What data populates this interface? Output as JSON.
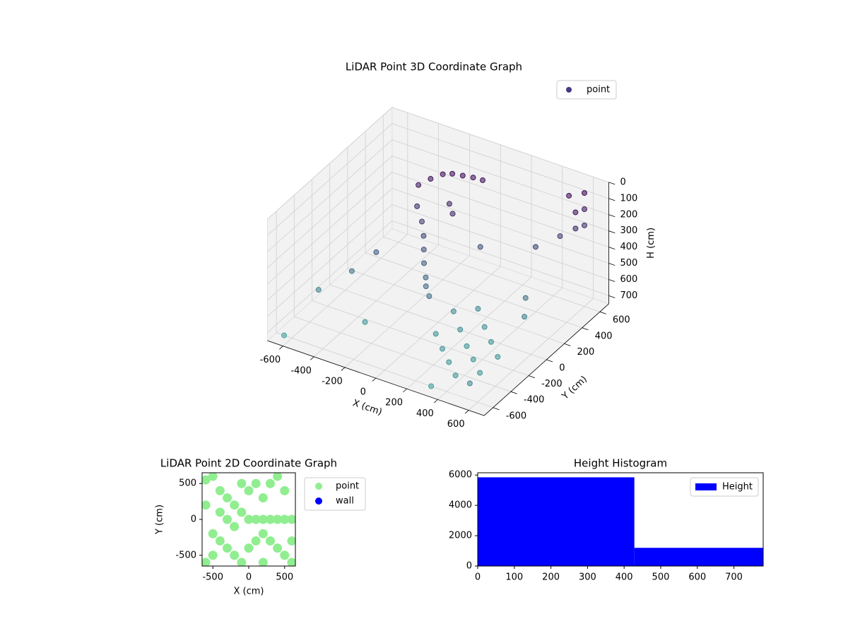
{
  "chart_data": [
    {
      "type": "scatter3d",
      "title": "LiDAR Point 3D Coordinate Graph",
      "xlabel": "X (cm)",
      "ylabel": "Y (cm)",
      "zlabel": "H (cm)",
      "xlim": [
        -700,
        700
      ],
      "ylim": [
        -700,
        700
      ],
      "zlim": [
        0,
        750
      ],
      "z_inverted": true,
      "xticks": [
        -600,
        -400,
        -200,
        0,
        200,
        400,
        600
      ],
      "yticks": [
        -600,
        -400,
        -200,
        0,
        200,
        400,
        600
      ],
      "zticks": [
        0,
        100,
        200,
        300,
        400,
        500,
        600,
        700
      ],
      "colormap": [
        "#440154",
        "#48a4a0"
      ],
      "legend": "upper right",
      "series": [
        {
          "name": "point",
          "color": "#443983",
          "x": [
            -300,
            -250,
            -200,
            -150,
            -100,
            -50,
            0,
            -280,
            -220,
            -180,
            -150,
            -120,
            -80,
            -50,
            0,
            -100,
            -50,
            100,
            200,
            300,
            400,
            500,
            100,
            200,
            300,
            400,
            200,
            300,
            400,
            500,
            600,
            600,
            600,
            600,
            600,
            500,
            500,
            -600,
            -500,
            -650,
            -400,
            300,
            450,
            500,
            -300,
            100,
            400,
            550
          ],
          "y": [
            300,
            350,
            400,
            420,
            450,
            480,
            500,
            250,
            200,
            150,
            100,
            50,
            0,
            -50,
            -100,
            300,
            250,
            0,
            -100,
            -200,
            -300,
            -400,
            -200,
            -300,
            -400,
            -500,
            100,
            0,
            -100,
            -200,
            600,
            600,
            600,
            500,
            500,
            600,
            500,
            -300,
            -100,
            -600,
            0,
            -600,
            200,
            100,
            -300,
            300,
            400,
            -600
          ],
          "z": [
            150,
            120,
            100,
            90,
            100,
            110,
            120,
            250,
            300,
            350,
            400,
            450,
            500,
            520,
            540,
            200,
            220,
            650,
            680,
            700,
            700,
            700,
            690,
            700,
            700,
            700,
            650,
            680,
            690,
            700,
            50,
            150,
            250,
            120,
            220,
            100,
            300,
            600,
            550,
            750,
            450,
            750,
            550,
            600,
            700,
            400,
            350,
            650
          ]
        }
      ]
    },
    {
      "type": "scatter",
      "title": "LiDAR Point 2D Coordinate Graph",
      "xlabel": "X (cm)",
      "ylabel": "Y (cm)",
      "xlim": [
        -650,
        650
      ],
      "ylim": [
        -650,
        650
      ],
      "xticks": [
        -500,
        0,
        500
      ],
      "yticks": [
        -500,
        0,
        500
      ],
      "legend": "outside right",
      "series": [
        {
          "name": "point",
          "color": "#90ee90",
          "x": [
            -600,
            -500,
            -400,
            -300,
            -200,
            -100,
            0,
            100,
            200,
            300,
            400,
            500,
            600,
            -500,
            -400,
            -300,
            -200,
            -100,
            0,
            100,
            200,
            300,
            400,
            500,
            600,
            -600,
            -100,
            0,
            100,
            200,
            300,
            400,
            500,
            -300,
            -200,
            -400,
            -600,
            600,
            200,
            -500
          ],
          "y": [
            550,
            600,
            400,
            300,
            200,
            100,
            0,
            0,
            0,
            0,
            0,
            0,
            0,
            -200,
            -300,
            -400,
            -500,
            -600,
            -400,
            -300,
            -200,
            -300,
            -400,
            -500,
            -600,
            -600,
            500,
            400,
            500,
            300,
            500,
            600,
            400,
            0,
            -100,
            100,
            200,
            -300,
            -600,
            -500
          ]
        },
        {
          "name": "wall",
          "color": "#0000ff",
          "x": [],
          "y": []
        }
      ]
    },
    {
      "type": "histogram",
      "title": "Height Histogram",
      "bins": [
        0,
        428,
        780
      ],
      "counts": [
        5850,
        1200
      ],
      "xlim": [
        0,
        780
      ],
      "ylim": [
        0,
        6150
      ],
      "xticks": [
        0,
        100,
        200,
        300,
        400,
        500,
        600,
        700
      ],
      "yticks": [
        0,
        2000,
        4000,
        6000
      ],
      "legend": "upper right",
      "series_name": "Height",
      "color": "#0000ff"
    }
  ]
}
